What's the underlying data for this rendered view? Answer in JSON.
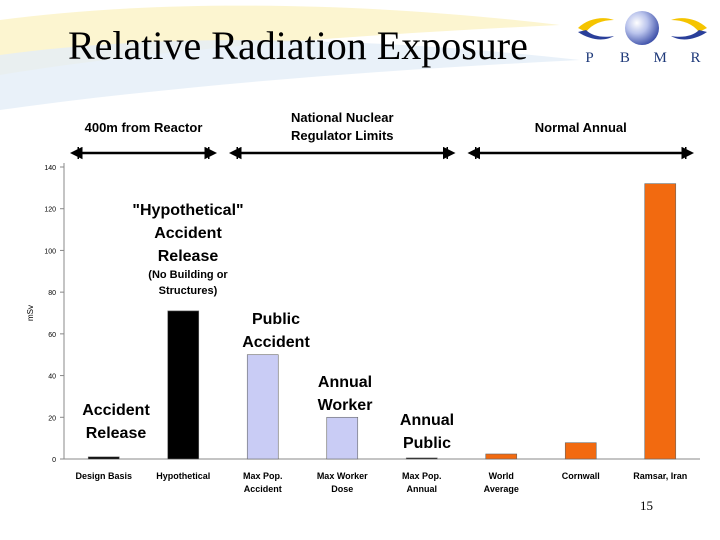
{
  "title": "Relative Radiation Exposure",
  "logo": {
    "letters": [
      "P",
      "B",
      "M",
      "R"
    ]
  },
  "page_number": "15",
  "chart_data": {
    "type": "bar",
    "ylabel": "mSv",
    "ylim": [
      0,
      140
    ],
    "yticks": [
      "0",
      "20",
      "40",
      "60",
      "80",
      "100",
      "120",
      "140"
    ],
    "categories": [
      {
        "line1": "Design Basis",
        "line2": ""
      },
      {
        "line1": "Hypothetical",
        "line2": ""
      },
      {
        "line1": "Max Pop.",
        "line2": "Accident"
      },
      {
        "line1": "Max Worker",
        "line2": "Dose"
      },
      {
        "line1": "Max Pop.",
        "line2": "Annual"
      },
      {
        "line1": "World",
        "line2": "Average"
      },
      {
        "line1": "Cornwall",
        "line2": ""
      },
      {
        "line1": "Ramsar, Iran",
        "line2": ""
      }
    ],
    "values": [
      1,
      71,
      50,
      20,
      0.5,
      2.4,
      7.8,
      132
    ],
    "colors": [
      "#000000",
      "#000000",
      "#c9ccf5",
      "#c9ccf5",
      "#000000",
      "#f26a10",
      "#f26a10",
      "#f26a10"
    ],
    "ranges": [
      {
        "lines": [
          "400m from Reactor"
        ]
      },
      {
        "lines": [
          "National Nuclear",
          "Regulator Limits"
        ]
      },
      {
        "lines": [
          "Normal Annual"
        ]
      }
    ],
    "annotations": {
      "hypothetical": {
        "lines": [
          "\"Hypothetical\"",
          "Accident",
          "Release"
        ],
        "sub": [
          "(No Building or",
          "Structures)"
        ]
      },
      "public_accident": {
        "lines": [
          "Public",
          "Accident"
        ]
      },
      "annual_worker": {
        "lines": [
          "Annual",
          "Worker"
        ]
      },
      "annual_public": {
        "lines": [
          "Annual",
          "Public"
        ]
      },
      "accident_release": {
        "lines": [
          "Accident",
          "Release"
        ]
      }
    }
  }
}
